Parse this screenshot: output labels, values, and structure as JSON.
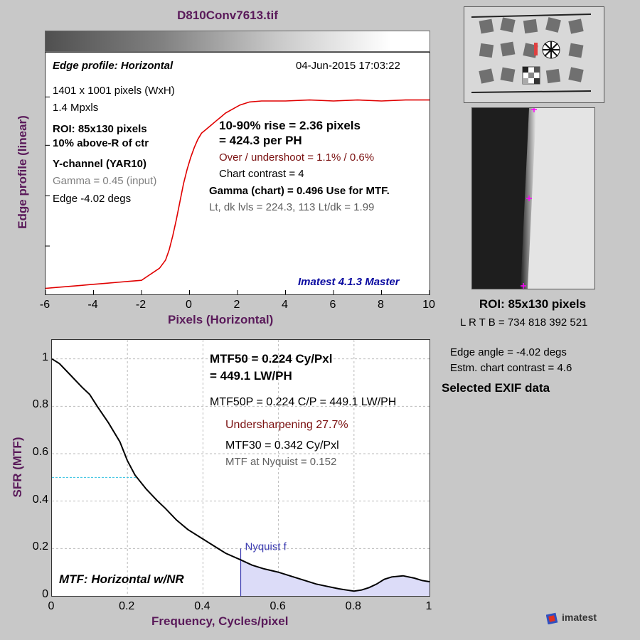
{
  "window_title": "D810Conv7613.tif",
  "edge_profile": {
    "title": "Edge profile: Horizontal",
    "date": "04-Jun-2015 17:03:22",
    "info_left": [
      "1401 x 1001 pixels (WxH)",
      "1.4 Mpxls"
    ],
    "roi": "ROI:  85x130 pixels",
    "roi_pos": "10% above-R of ctr",
    "channel": "Y-channel  (YAR10)",
    "gamma_input": "Gamma = 0.45 (input)",
    "edge_angle": "Edge -4.02 degs",
    "rise_line1": "10-90% rise = 2.36 pixels",
    "rise_line2": "= 424.3 per PH",
    "overshoot": "Over / undershoot = 1.1% / 0.6%",
    "chart_contrast": "Chart contrast = 4",
    "gamma_chart": "Gamma (chart) = 0.496  Use for MTF.",
    "levels": "Lt, dk lvls = 224.3, 113   Lt/dk = 1.99",
    "version": "Imatest 4.1.3 Master",
    "xlabel": "Pixels (Horizontal)",
    "ylabel": "Edge profile (linear)",
    "x_ticks": [
      "-6",
      "-4",
      "-2",
      "0",
      "2",
      "4",
      "6",
      "8",
      "10"
    ],
    "line_color": "#e00000"
  },
  "roi_panel": {
    "label": "ROI:  85x130 pixels",
    "coords": "L R  T B = 734 818  392 521",
    "edge_angle": "Edge angle = -4.02 degs",
    "chart_contrast": "Estm. chart contrast = 4.6",
    "exif": "Selected EXIF data"
  },
  "mtf": {
    "mtf50_line1": "MTF50 = 0.224 Cy/Pxl",
    "mtf50_line2": "= 449.1 LW/PH",
    "mtf50p": "MTF50P = 0.224 C/P = 449.1 LW/PH",
    "undersharpening": "Undersharpening 27.7%",
    "mtf30": "MTF30 = 0.342 Cy/Pxl",
    "nyquist_mtf": "MTF at Nyquist = 0.152",
    "nyquist_label": "Nyquist f",
    "panel_label": "MTF: Horizontal w/NR",
    "xlabel": "Frequency, Cycles/pixel",
    "ylabel": "SFR (MTF)",
    "x_ticks": [
      "0",
      "0.2",
      "0.4",
      "0.6",
      "0.8",
      "1"
    ],
    "y_ticks": [
      "0",
      "0.2",
      "0.4",
      "0.6",
      "0.8",
      "1"
    ]
  },
  "logo_text": "imatest",
  "chart_data": [
    {
      "type": "line",
      "title": "Edge profile: Horizontal",
      "xlabel": "Pixels (Horizontal)",
      "ylabel": "Edge profile (linear)",
      "xlim": [
        -6,
        10
      ],
      "ylim": [
        0,
        1
      ],
      "series": [
        {
          "x": [
            -6,
            -5.5,
            -5,
            -4.5,
            -4,
            -3.5,
            -3,
            -2.5,
            -2,
            -1.75,
            -1.5,
            -1.25,
            -1,
            -0.85,
            -0.7,
            -0.55,
            -0.4,
            -0.25,
            -0.1,
            0.05,
            0.2,
            0.35,
            0.5,
            0.7,
            0.9,
            1.1,
            1.3,
            1.5,
            1.8,
            2.1,
            2.5,
            3,
            4,
            5,
            6,
            7,
            8,
            9,
            10
          ],
          "y": [
            0.01,
            0.015,
            0.02,
            0.025,
            0.03,
            0.035,
            0.04,
            0.045,
            0.05,
            0.07,
            0.09,
            0.11,
            0.15,
            0.2,
            0.27,
            0.35,
            0.44,
            0.53,
            0.6,
            0.66,
            0.71,
            0.75,
            0.78,
            0.8,
            0.82,
            0.84,
            0.86,
            0.88,
            0.9,
            0.92,
            0.935,
            0.94,
            0.94,
            0.945,
            0.94,
            0.945,
            0.94,
            0.945,
            0.945
          ]
        }
      ]
    },
    {
      "type": "line",
      "xlabel": "Frequency, Cycles/pixel",
      "ylabel": "SFR (MTF)",
      "xlim": [
        0,
        1
      ],
      "ylim": [
        0,
        1.08
      ],
      "grid": true,
      "series": [
        {
          "x": [
            0,
            0.02,
            0.05,
            0.08,
            0.1,
            0.12,
            0.15,
            0.18,
            0.2,
            0.22,
            0.25,
            0.28,
            0.3,
            0.33,
            0.36,
            0.4,
            0.43,
            0.46,
            0.5,
            0.53,
            0.56,
            0.6,
            0.63,
            0.66,
            0.7,
            0.73,
            0.76,
            0.78,
            0.8,
            0.82,
            0.84,
            0.86,
            0.88,
            0.9,
            0.93,
            0.96,
            0.98,
            1.0
          ],
          "y": [
            1.0,
            0.98,
            0.93,
            0.88,
            0.85,
            0.8,
            0.73,
            0.65,
            0.57,
            0.51,
            0.45,
            0.4,
            0.37,
            0.32,
            0.28,
            0.24,
            0.21,
            0.18,
            0.152,
            0.13,
            0.115,
            0.1,
            0.085,
            0.07,
            0.05,
            0.04,
            0.03,
            0.025,
            0.02,
            0.025,
            0.035,
            0.05,
            0.07,
            0.08,
            0.085,
            0.075,
            0.065,
            0.06
          ]
        }
      ],
      "annotations": {
        "nyquist_x": 0.5,
        "mtf50_x": 0.224,
        "mtf50_y": 0.5
      }
    }
  ]
}
